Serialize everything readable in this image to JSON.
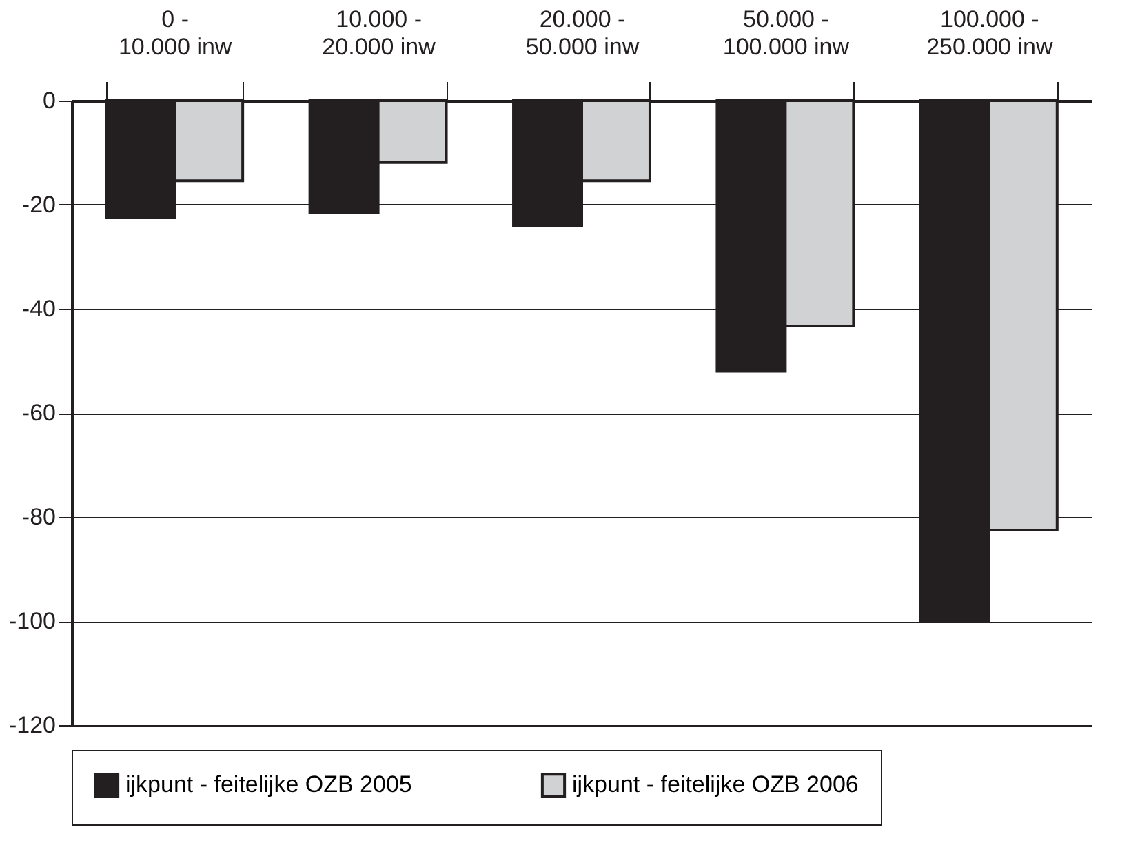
{
  "chart_data": {
    "type": "bar",
    "categories": [
      "0 -\n10.000 inw",
      "10.000 -\n20.000 inw",
      "20.000 -\n50.000 inw",
      "50.000 -\n100.000 inw",
      "100.000 -\n250.000 inw"
    ],
    "series": [
      {
        "name": "ijkpunt - feitelijke OZB 2005",
        "color": "#231f20",
        "values": [
          -22.5,
          -21.5,
          -24,
          -52,
          -100
        ]
      },
      {
        "name": "ijkpunt - feitelijke OZB 2006",
        "color": "#d1d2d4",
        "values": [
          -15.4,
          -11.9,
          -15.4,
          -43.3,
          -82.5
        ]
      }
    ],
    "ylim": [
      -120,
      0
    ],
    "yticks": [
      -120,
      -100,
      -80,
      -60,
      -40,
      -20,
      0
    ],
    "grid": "y",
    "legend": "bottom"
  }
}
